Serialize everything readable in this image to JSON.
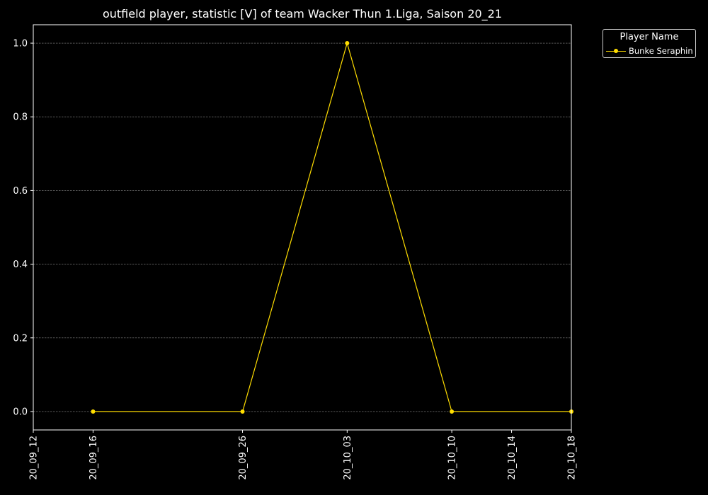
{
  "chart_data": {
    "type": "line",
    "title": "outfield player, statistic [V] of team Wacker Thun 1.Liga, Saison 20_21",
    "xlabel": "",
    "ylabel": "",
    "x_ticks": [
      "20_09_12",
      "20_09_16",
      "20_09_26",
      "20_10_03",
      "20_10_10",
      "20_10_14",
      "20_10_18"
    ],
    "y_ticks": [
      "0.0",
      "0.2",
      "0.4",
      "0.6",
      "0.8",
      "1.0"
    ],
    "ylim": [
      -0.05,
      1.05
    ],
    "grid": true,
    "legend_title": "Player Name",
    "legend_position": "outside-top-right",
    "series": [
      {
        "name": "Bunke Seraphin",
        "color": "#ffdd00",
        "x": [
          "20_09_16",
          "20_09_26",
          "20_10_03",
          "20_10_10",
          "20_10_18"
        ],
        "values": [
          0,
          0,
          1,
          0,
          0
        ]
      }
    ]
  }
}
